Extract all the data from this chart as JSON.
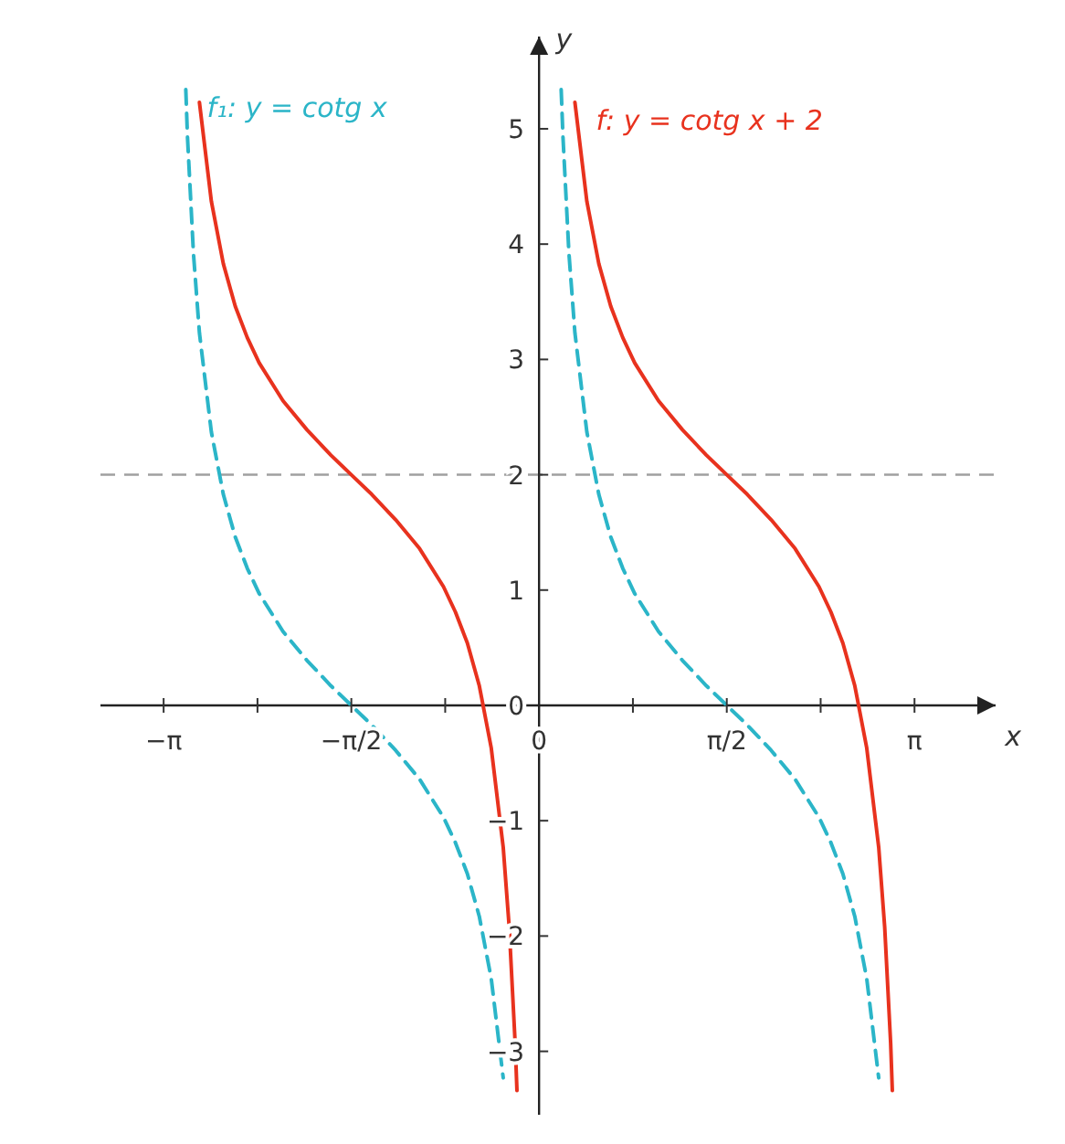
{
  "chart_data": {
    "type": "line",
    "xlabel": "x",
    "ylabel": "y",
    "xlim": [
      -3.67,
      3.82
    ],
    "ylim": [
      -3.55,
      5.8
    ],
    "xticks": [
      {
        "value": -3.1416,
        "label": "−π"
      },
      {
        "value": -2.3562,
        "label": null
      },
      {
        "value": -1.5708,
        "label": "−π/2"
      },
      {
        "value": -0.7854,
        "label": null
      },
      0,
      {
        "value": 0.7854,
        "label": null
      },
      {
        "value": 1.5708,
        "label": "π/2"
      },
      {
        "value": 2.3562,
        "label": null
      },
      {
        "value": 3.1416,
        "label": "π"
      }
    ],
    "yticks": [
      {
        "value": -3,
        "label": "−3"
      },
      {
        "value": -2,
        "label": "−2"
      },
      {
        "value": -1,
        "label": "−1"
      },
      0,
      1,
      2,
      3,
      4,
      5
    ],
    "grid": false,
    "legend": false,
    "marker": "none",
    "ref_lines": [
      {
        "axis": "y",
        "value": 2,
        "label": null,
        "color": "#a0a0a0",
        "line_style": "dashed"
      }
    ],
    "series": [
      {
        "name": "f₁: y = cotg x",
        "color": "#2bb5c8",
        "line_style": "dashed",
        "x": [
          -2.956,
          -2.942,
          -2.892,
          -2.842,
          -2.742,
          -2.642,
          -2.542,
          -2.442,
          -2.342,
          -2.142,
          -1.942,
          -1.742,
          -1.571,
          -1.4,
          -1.2,
          -1.0,
          -0.8,
          -0.7,
          -0.6,
          -0.5,
          -0.4,
          -0.3,
          0,
          0.185,
          0.2,
          0.25,
          0.3,
          0.4,
          0.5,
          0.6,
          0.7,
          0.8,
          1.0,
          1.2,
          1.4,
          1.571,
          1.742,
          1.942,
          2.142,
          2.342,
          2.442,
          2.542,
          2.642,
          2.742,
          2.842
        ],
        "values": [
          5.34,
          4.93,
          3.92,
          3.23,
          2.37,
          1.83,
          1.46,
          1.19,
          0.97,
          0.64,
          0.39,
          0.17,
          0,
          -0.17,
          -0.39,
          -0.64,
          -0.97,
          -1.19,
          -1.46,
          -1.83,
          -2.37,
          -3.23,
          null,
          5.34,
          4.93,
          3.92,
          3.23,
          2.37,
          1.83,
          1.46,
          1.19,
          0.97,
          0.64,
          0.39,
          0.17,
          0,
          -0.17,
          -0.39,
          -0.64,
          -0.97,
          -1.19,
          -1.46,
          -1.83,
          -2.37,
          -3.23
        ]
      },
      {
        "name": "f: y = cotg x + 2",
        "color": "#e8321e",
        "line_style": "solid",
        "x": [
          -2.842,
          -2.742,
          -2.642,
          -2.542,
          -2.442,
          -2.342,
          -2.142,
          -1.942,
          -1.742,
          -1.571,
          -1.4,
          -1.2,
          -1.0,
          -0.8,
          -0.7,
          -0.6,
          -0.5,
          -0.4,
          -0.3,
          -0.25,
          -0.2,
          -0.185,
          0,
          0.3,
          0.4,
          0.5,
          0.6,
          0.7,
          0.8,
          1.0,
          1.2,
          1.4,
          1.571,
          1.742,
          1.942,
          2.142,
          2.342,
          2.442,
          2.542,
          2.642,
          2.742,
          2.842,
          2.892,
          2.942,
          2.956
        ],
        "values": [
          5.23,
          4.37,
          3.83,
          3.46,
          3.19,
          2.97,
          2.64,
          2.39,
          2.17,
          2,
          1.83,
          1.61,
          1.36,
          1.03,
          0.81,
          0.54,
          0.17,
          -0.37,
          -1.23,
          -1.92,
          -2.93,
          -3.34,
          null,
          5.23,
          4.37,
          3.83,
          3.46,
          3.19,
          2.97,
          2.64,
          2.39,
          2.17,
          2,
          1.83,
          1.61,
          1.36,
          1.03,
          0.81,
          0.54,
          0.17,
          -0.37,
          -1.23,
          -1.92,
          -2.93,
          -3.34
        ]
      }
    ]
  }
}
